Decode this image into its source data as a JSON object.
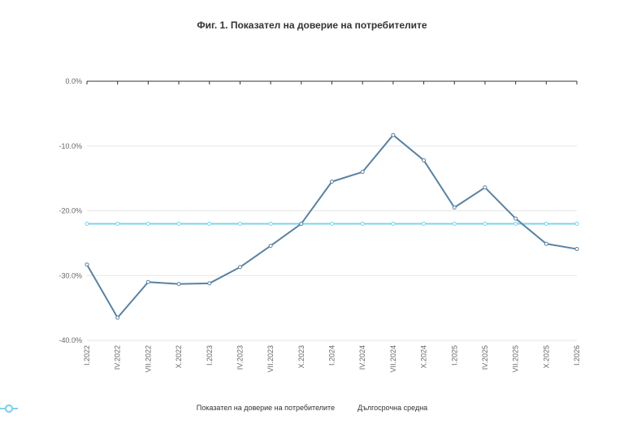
{
  "chart_data": {
    "type": "line",
    "title": "Фиг. 1. Показател на доверие на потребителите",
    "categories": [
      "I.2022",
      "IV.2022",
      "VII.2022",
      "X.2022",
      "I.2023",
      "IV.2023",
      "VII.2023",
      "X.2023",
      "I.2024",
      "IV.2024",
      "VII.2024",
      "X.2024",
      "I.2025",
      "IV.2025",
      "VII.2025",
      "X.2025",
      "I.2026"
    ],
    "series": [
      {
        "name": "Показател на доверие на потребителите",
        "color": "#5b82a0",
        "values": [
          -28.3,
          -36.5,
          -31.0,
          -31.3,
          -31.2,
          -28.7,
          -25.4,
          -22.0,
          -15.5,
          -14.0,
          -8.3,
          -12.2,
          -19.5,
          -16.4,
          -21.2,
          -25.1,
          -25.9
        ]
      },
      {
        "name": "Дългосрочна средна",
        "color": "#7dd3ee",
        "values": [
          -22.0,
          -22.0,
          -22.0,
          -22.0,
          -22.0,
          -22.0,
          -22.0,
          -22.0,
          -22.0,
          -22.0,
          -22.0,
          -22.0,
          -22.0,
          -22.0,
          -22.0,
          -22.0,
          -22.0
        ]
      }
    ],
    "yticks": [
      "0.0%",
      "-10.0%",
      "-20.0%",
      "-30.0%",
      "-40.0%"
    ],
    "ylim": [
      -40,
      0
    ],
    "xlabel": "",
    "ylabel": "",
    "grid": true,
    "legend": "bottom"
  }
}
